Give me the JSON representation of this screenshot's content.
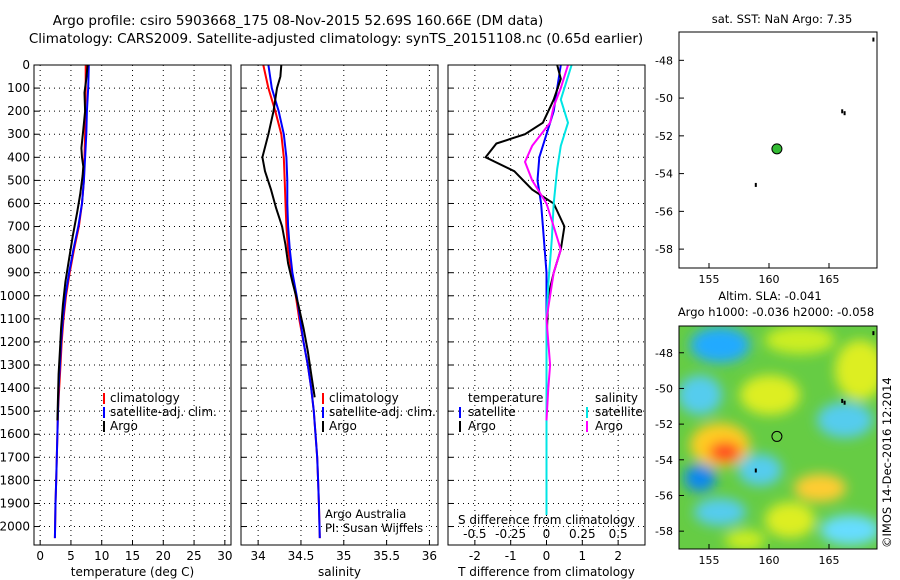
{
  "title_line1": "Argo profile: csiro 5903668_175 08-Nov-2015 52.69S 160.66E (DM data)",
  "title_line2": "Climatology: CARS2009. Satellite-adjusted climatology: synTS_20151108.nc (0.65d earlier)",
  "credit": "Argo Australia",
  "pi": "PI: Susan Wijffels",
  "watermark": "©IMOS 14-Dec-2016 12:2014",
  "colors": {
    "climatology": "#ff0000",
    "satellite": "#0000ff",
    "argo": "#000000",
    "sat_salt": "#00e5e5",
    "argo_salt": "#ff00ff"
  },
  "chart_data": [
    {
      "type": "line",
      "xlabel": "temperature (deg C)",
      "xlim": [
        -1,
        31
      ],
      "xticks": [
        0,
        5,
        10,
        15,
        20,
        25,
        30
      ],
      "ylim": [
        2080,
        0
      ],
      "yticks": [
        0,
        100,
        200,
        300,
        400,
        500,
        600,
        700,
        800,
        900,
        1000,
        1100,
        1200,
        1300,
        1400,
        1500,
        1600,
        1700,
        1800,
        1900,
        2000
      ],
      "ytick_labels": [
        "0",
        "100",
        "200",
        "300",
        "400",
        "500",
        "600",
        "700",
        "800",
        "900",
        "1000",
        "1100",
        "1200",
        "1300",
        "1400",
        "1500",
        "1600",
        "1700",
        "1800",
        "1900",
        "2000"
      ],
      "legend": [
        "climatology",
        "satellite-adj. clim.",
        "Argo"
      ],
      "series": [
        {
          "name": "climatology",
          "color": "#ff0000",
          "x": [
            7.4,
            7.4,
            7.3,
            7.3,
            7.2,
            7.1,
            6.8,
            6.3,
            5.5,
            4.8,
            4.2,
            3.8,
            3.5,
            3.3,
            3.1,
            2.9,
            2.8,
            2.7,
            2.6,
            2.5,
            2.4
          ],
          "y": [
            0,
            100,
            200,
            300,
            400,
            500,
            600,
            700,
            800,
            900,
            1000,
            1100,
            1200,
            1300,
            1400,
            1500,
            1600,
            1700,
            1800,
            1900,
            2050
          ]
        },
        {
          "name": "satellite-adj. clim.",
          "color": "#0000ff",
          "x": [
            7.9,
            7.8,
            7.6,
            7.5,
            7.3,
            7.1,
            6.8,
            6.2,
            5.4,
            4.7,
            4.1,
            3.7,
            3.4,
            3.2,
            3.0,
            2.9,
            2.8,
            2.7,
            2.6,
            2.5,
            2.4
          ],
          "y": [
            0,
            100,
            200,
            300,
            400,
            500,
            600,
            700,
            800,
            900,
            1000,
            1100,
            1200,
            1300,
            1400,
            1500,
            1600,
            1700,
            1800,
            1900,
            2050
          ]
        },
        {
          "name": "Argo",
          "color": "#000000",
          "x": [
            7.7,
            7.5,
            7.2,
            7.3,
            7.0,
            6.7,
            6.8,
            7.0,
            6.9,
            6.5,
            6.0,
            5.3,
            4.7,
            4.1,
            3.7,
            3.4,
            3.2,
            3.0,
            2.9,
            2.8
          ],
          "y": [
            0,
            60,
            120,
            200,
            280,
            360,
            400,
            440,
            480,
            560,
            640,
            740,
            840,
            940,
            1040,
            1140,
            1240,
            1340,
            1440,
            1540
          ]
        }
      ]
    },
    {
      "type": "line",
      "xlabel": "salinity",
      "xlim": [
        33.8,
        36.1
      ],
      "xticks": [
        34,
        34.5,
        35,
        35.5,
        36
      ],
      "xtick_labels": [
        "34",
        "34.5",
        "35",
        "35.5",
        "36"
      ],
      "ylim": [
        2080,
        0
      ],
      "legend": [
        "climatology",
        "satellite-adj. clim.",
        "Argo"
      ],
      "series": [
        {
          "name": "climatology",
          "color": "#ff0000",
          "x": [
            34.06,
            34.12,
            34.2,
            34.27,
            34.3,
            34.31,
            34.32,
            34.33,
            34.35,
            34.39,
            34.44,
            34.48,
            34.53,
            34.58,
            34.62,
            34.65,
            34.67,
            34.69,
            34.7,
            34.71,
            34.72
          ],
          "y": [
            0,
            100,
            200,
            300,
            400,
            500,
            600,
            700,
            800,
            900,
            1000,
            1100,
            1200,
            1300,
            1400,
            1500,
            1600,
            1700,
            1800,
            1900,
            2050
          ]
        },
        {
          "name": "satellite-adj. clim.",
          "color": "#0000ff",
          "x": [
            34.12,
            34.16,
            34.24,
            34.3,
            34.33,
            34.34,
            34.34,
            34.35,
            34.37,
            34.4,
            34.45,
            34.49,
            34.53,
            34.58,
            34.62,
            34.65,
            34.67,
            34.69,
            34.7,
            34.71,
            34.72
          ],
          "y": [
            0,
            100,
            200,
            300,
            400,
            500,
            600,
            700,
            800,
            900,
            1000,
            1100,
            1200,
            1300,
            1400,
            1500,
            1600,
            1700,
            1800,
            1900,
            2050
          ]
        },
        {
          "name": "Argo",
          "color": "#000000",
          "x": [
            34.27,
            34.26,
            34.22,
            34.18,
            34.12,
            34.05,
            34.08,
            34.15,
            34.21,
            34.28,
            34.32,
            34.35,
            34.4,
            34.47,
            34.53,
            34.58,
            34.62,
            34.66
          ],
          "y": [
            0,
            50,
            100,
            200,
            300,
            400,
            460,
            540,
            620,
            700,
            780,
            860,
            940,
            1040,
            1140,
            1240,
            1340,
            1440
          ]
        }
      ]
    },
    {
      "type": "line",
      "xlabel": "T difference from climatology",
      "xlabel_top": "S difference from climatology",
      "xlim": [
        -2.75,
        2.75
      ],
      "xticks": [
        -2,
        -1,
        0,
        1,
        2
      ],
      "xtick_labels_top": [
        "-0.5",
        "-0.25",
        "0",
        "0.25",
        "0.5"
      ],
      "ylim": [
        2080,
        0
      ],
      "legend": [
        "temperature",
        "satellite",
        "Argo",
        "salinity",
        "satellite",
        "Argo"
      ],
      "series": [
        {
          "name": "satellite",
          "color": "#0000ff",
          "x": [
            0.4,
            0.3,
            0.2,
            0.0,
            -0.2,
            -0.25,
            -0.15,
            -0.1,
            -0.05,
            0.0,
            0.0,
            0.0,
            0.0,
            0.0,
            0.0,
            0.0,
            0.0
          ],
          "y": [
            0,
            100,
            200,
            300,
            400,
            500,
            600,
            700,
            800,
            900,
            1000,
            1100,
            1200,
            1400,
            1600,
            1800,
            1950
          ]
        },
        {
          "name": "Argo",
          "color": "#000000",
          "x": [
            0.3,
            0.4,
            0.2,
            -0.1,
            -0.6,
            -1.4,
            -1.7,
            -0.9,
            -0.4,
            0.2,
            0.5,
            0.4,
            0.2,
            0.05,
            0.0,
            0.0,
            0.0
          ],
          "y": [
            0,
            60,
            150,
            250,
            300,
            340,
            400,
            460,
            540,
            600,
            700,
            800,
            900,
            1000,
            1200,
            1400,
            1540
          ]
        },
        {
          "name": "satellite (salinity)",
          "color": "#00e5e5",
          "x": [
            0.7,
            0.5,
            0.4,
            0.6,
            0.4,
            0.3,
            0.2,
            0.15,
            0.1,
            0.05,
            0.0,
            0.0,
            0.0,
            0.0,
            0.0
          ],
          "y": [
            0,
            100,
            150,
            250,
            350,
            450,
            600,
            750,
            850,
            950,
            1100,
            1300,
            1500,
            1700,
            1950
          ]
        },
        {
          "name": "Argo (salinity)",
          "color": "#ff00ff",
          "x": [
            0.6,
            0.4,
            0.2,
            0.1,
            -0.4,
            -0.6,
            -0.4,
            0.0,
            0.2,
            0.4,
            0.2,
            0.1,
            0.0,
            0.1,
            0.05,
            0.0
          ],
          "y": [
            0,
            100,
            180,
            250,
            350,
            420,
            500,
            600,
            700,
            800,
            900,
            1000,
            1100,
            1300,
            1400,
            1540
          ]
        }
      ]
    },
    {
      "type": "scatter",
      "title": "sat. SST: NaN Argo: 7.35",
      "xlim": [
        152.5,
        169
      ],
      "xticks": [
        155,
        160,
        165
      ],
      "ylim": [
        -59,
        -46.5
      ],
      "yticks": [
        -48,
        -50,
        -52,
        -54,
        -56,
        -58
      ],
      "points": [
        {
          "lon": 160.66,
          "lat": -52.69,
          "color": "#33bb33"
        }
      ]
    },
    {
      "type": "heatmap",
      "title_line1": "Altim. SLA: -0.041",
      "title_line2": "Argo h1000: -0.036 h2000: -0.058",
      "xlim": [
        152.5,
        169
      ],
      "xticks": [
        155,
        160,
        165
      ],
      "ylim": [
        -59,
        -46.5
      ],
      "yticks": [
        -48,
        -50,
        -52,
        -54,
        -56,
        -58
      ],
      "points": [
        {
          "lon": 160.66,
          "lat": -52.69
        }
      ]
    }
  ]
}
